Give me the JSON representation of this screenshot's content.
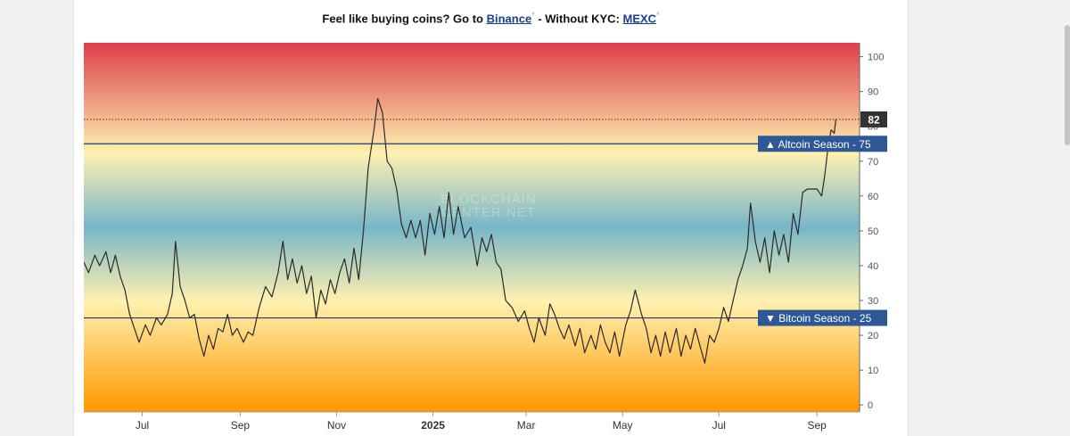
{
  "header": {
    "prefix": "Feel like buying coins? Go to ",
    "link1": "Binance",
    "mark1": "*",
    "mid": " - Without KYC: ",
    "link2": "MEXC",
    "mark2": "*"
  },
  "watermark": {
    "line1": "BLOCKCHAIN",
    "line2": "CENTER.NET"
  },
  "colors": {
    "top": "#dd3f4a",
    "pale": "#fff1b0",
    "blue": "#77b6c8",
    "bottom": "#ff9800",
    "line": "#2b2b2b",
    "threshold": "#1e3a6e",
    "label_bg": "#2e5797"
  },
  "chart_data": {
    "type": "line",
    "title": "",
    "xlabel": "",
    "ylabel": "",
    "ylim": [
      -2,
      104
    ],
    "y_ticks": [
      0,
      10,
      20,
      30,
      40,
      50,
      60,
      70,
      80,
      90,
      100
    ],
    "x_range": [
      "2024-05-25",
      "2025-09-28"
    ],
    "x_ticks": [
      {
        "date": "2024-07-01",
        "label": "Jul"
      },
      {
        "date": "2024-09-01",
        "label": "Sep"
      },
      {
        "date": "2024-11-01",
        "label": "Nov"
      },
      {
        "date": "2025-01-01",
        "label": "2025"
      },
      {
        "date": "2025-03-01",
        "label": "Mar"
      },
      {
        "date": "2025-05-01",
        "label": "May"
      },
      {
        "date": "2025-07-01",
        "label": "Jul"
      },
      {
        "date": "2025-09-01",
        "label": "Sep"
      }
    ],
    "grid": false,
    "legend": "none",
    "series": [
      {
        "values": [
          [
            "2024-05-25",
            41
          ],
          [
            "2024-05-28",
            38
          ],
          [
            "2024-06-01",
            43
          ],
          [
            "2024-06-04",
            40
          ],
          [
            "2024-06-08",
            44
          ],
          [
            "2024-06-11",
            38
          ],
          [
            "2024-06-14",
            43
          ],
          [
            "2024-06-17",
            37
          ],
          [
            "2024-06-20",
            33
          ],
          [
            "2024-06-23",
            26
          ],
          [
            "2024-06-26",
            22
          ],
          [
            "2024-06-29",
            18
          ],
          [
            "2024-07-03",
            23
          ],
          [
            "2024-07-06",
            20
          ],
          [
            "2024-07-10",
            25
          ],
          [
            "2024-07-13",
            23
          ],
          [
            "2024-07-17",
            26
          ],
          [
            "2024-07-20",
            32
          ],
          [
            "2024-07-22",
            47
          ],
          [
            "2024-07-25",
            34
          ],
          [
            "2024-07-28",
            30
          ],
          [
            "2024-07-31",
            25
          ],
          [
            "2024-08-03",
            26
          ],
          [
            "2024-08-06",
            19
          ],
          [
            "2024-08-09",
            14
          ],
          [
            "2024-08-12",
            20
          ],
          [
            "2024-08-15",
            16
          ],
          [
            "2024-08-18",
            22
          ],
          [
            "2024-08-21",
            21
          ],
          [
            "2024-08-24",
            26
          ],
          [
            "2024-08-27",
            20
          ],
          [
            "2024-08-30",
            22
          ],
          [
            "2024-09-03",
            18
          ],
          [
            "2024-09-06",
            21
          ],
          [
            "2024-09-09",
            20
          ],
          [
            "2024-09-13",
            28
          ],
          [
            "2024-09-17",
            34
          ],
          [
            "2024-09-21",
            31
          ],
          [
            "2024-09-25",
            38
          ],
          [
            "2024-09-28",
            47
          ],
          [
            "2024-10-01",
            36
          ],
          [
            "2024-10-04",
            42
          ],
          [
            "2024-10-07",
            35
          ],
          [
            "2024-10-10",
            40
          ],
          [
            "2024-10-13",
            32
          ],
          [
            "2024-10-16",
            37
          ],
          [
            "2024-10-19",
            25
          ],
          [
            "2024-10-22",
            33
          ],
          [
            "2024-10-25",
            29
          ],
          [
            "2024-10-28",
            36
          ],
          [
            "2024-10-31",
            32
          ],
          [
            "2024-11-03",
            38
          ],
          [
            "2024-11-06",
            42
          ],
          [
            "2024-11-09",
            35
          ],
          [
            "2024-11-12",
            45
          ],
          [
            "2024-11-15",
            36
          ],
          [
            "2024-11-18",
            50
          ],
          [
            "2024-11-21",
            68
          ],
          [
            "2024-11-25",
            80
          ],
          [
            "2024-11-27",
            88
          ],
          [
            "2024-11-30",
            84
          ],
          [
            "2024-12-03",
            70
          ],
          [
            "2024-12-06",
            68
          ],
          [
            "2024-12-09",
            62
          ],
          [
            "2024-12-12",
            52
          ],
          [
            "2024-12-15",
            48
          ],
          [
            "2024-12-18",
            53
          ],
          [
            "2024-12-21",
            48
          ],
          [
            "2024-12-24",
            53
          ],
          [
            "2024-12-27",
            43
          ],
          [
            "2024-12-30",
            55
          ],
          [
            "2025-01-02",
            49
          ],
          [
            "2025-01-05",
            57
          ],
          [
            "2025-01-08",
            48
          ],
          [
            "2025-01-11",
            61
          ],
          [
            "2025-01-14",
            49
          ],
          [
            "2025-01-17",
            57
          ],
          [
            "2025-01-21",
            48
          ],
          [
            "2025-01-25",
            51
          ],
          [
            "2025-01-29",
            40
          ],
          [
            "2025-02-01",
            48
          ],
          [
            "2025-02-04",
            44
          ],
          [
            "2025-02-07",
            49
          ],
          [
            "2025-02-10",
            41
          ],
          [
            "2025-02-13",
            39
          ],
          [
            "2025-02-16",
            30
          ],
          [
            "2025-02-20",
            28
          ],
          [
            "2025-02-24",
            24
          ],
          [
            "2025-02-28",
            27
          ],
          [
            "2025-03-03",
            22
          ],
          [
            "2025-03-06",
            18
          ],
          [
            "2025-03-09",
            25
          ],
          [
            "2025-03-13",
            20
          ],
          [
            "2025-03-16",
            29
          ],
          [
            "2025-03-19",
            26
          ],
          [
            "2025-03-22",
            22
          ],
          [
            "2025-03-25",
            19
          ],
          [
            "2025-03-28",
            23
          ],
          [
            "2025-04-01",
            17
          ],
          [
            "2025-04-04",
            22
          ],
          [
            "2025-04-07",
            15
          ],
          [
            "2025-04-11",
            20
          ],
          [
            "2025-04-14",
            16
          ],
          [
            "2025-04-17",
            23
          ],
          [
            "2025-04-20",
            18
          ],
          [
            "2025-04-23",
            15
          ],
          [
            "2025-04-26",
            21
          ],
          [
            "2025-04-29",
            14
          ],
          [
            "2025-05-03",
            23
          ],
          [
            "2025-05-06",
            27
          ],
          [
            "2025-05-09",
            33
          ],
          [
            "2025-05-13",
            26
          ],
          [
            "2025-05-16",
            22
          ],
          [
            "2025-05-19",
            15
          ],
          [
            "2025-05-22",
            20
          ],
          [
            "2025-05-25",
            14
          ],
          [
            "2025-05-28",
            21
          ],
          [
            "2025-05-31",
            15
          ],
          [
            "2025-06-04",
            22
          ],
          [
            "2025-06-07",
            14
          ],
          [
            "2025-06-10",
            20
          ],
          [
            "2025-06-13",
            16
          ],
          [
            "2025-06-16",
            22
          ],
          [
            "2025-06-19",
            17
          ],
          [
            "2025-06-22",
            12
          ],
          [
            "2025-06-25",
            20
          ],
          [
            "2025-06-28",
            18
          ],
          [
            "2025-07-01",
            22
          ],
          [
            "2025-07-04",
            28
          ],
          [
            "2025-07-07",
            24
          ],
          [
            "2025-07-10",
            30
          ],
          [
            "2025-07-13",
            36
          ],
          [
            "2025-07-16",
            40
          ],
          [
            "2025-07-19",
            45
          ],
          [
            "2025-07-21",
            58
          ],
          [
            "2025-07-24",
            47
          ],
          [
            "2025-07-27",
            41
          ],
          [
            "2025-07-30",
            48
          ],
          [
            "2025-08-02",
            38
          ],
          [
            "2025-08-05",
            50
          ],
          [
            "2025-08-08",
            43
          ],
          [
            "2025-08-11",
            49
          ],
          [
            "2025-08-14",
            41
          ],
          [
            "2025-08-17",
            55
          ],
          [
            "2025-08-20",
            49
          ],
          [
            "2025-08-23",
            61
          ],
          [
            "2025-08-26",
            62
          ],
          [
            "2025-08-29",
            62
          ],
          [
            "2025-09-01",
            62
          ],
          [
            "2025-09-04",
            60
          ],
          [
            "2025-09-06",
            66
          ],
          [
            "2025-09-08",
            74
          ],
          [
            "2025-09-10",
            79
          ],
          [
            "2025-09-12",
            78
          ],
          [
            "2025-09-13",
            82
          ]
        ]
      }
    ],
    "current": {
      "value": "82",
      "y": 82
    },
    "thresholds": [
      {
        "y": 75,
        "label": "▲ Altcoin Season - 75"
      },
      {
        "y": 25,
        "label": "▼ Bitcoin Season - 25"
      }
    ]
  }
}
